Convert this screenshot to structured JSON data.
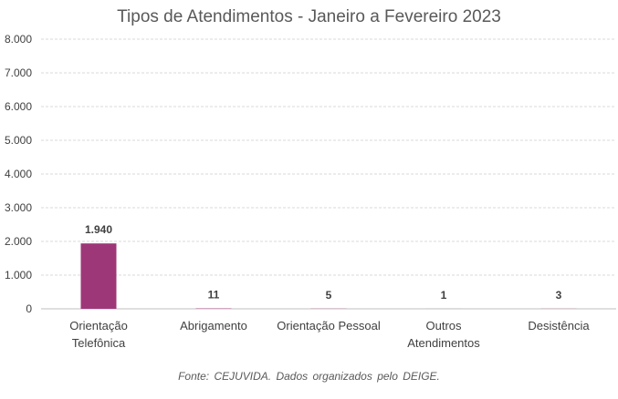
{
  "chart_data": {
    "type": "bar",
    "title": "Tipos de Atendimentos - Janeiro a Fevereiro 2023",
    "categories": [
      [
        "Orientação",
        "Telefônica"
      ],
      [
        "Abrigamento"
      ],
      [
        "Orientação Pessoal"
      ],
      [
        "Outros",
        "Atendimentos"
      ],
      [
        "Desistência"
      ]
    ],
    "values": [
      1940,
      11,
      5,
      1,
      3
    ],
    "value_labels": [
      "1.940",
      "11",
      "5",
      "1",
      "3"
    ],
    "ylim": [
      0,
      8000
    ],
    "yticks": [
      0,
      1000,
      2000,
      3000,
      4000,
      5000,
      6000,
      7000,
      8000
    ],
    "ytick_labels": [
      "0",
      "1.000",
      "2.000",
      "3.000",
      "4.000",
      "5.000",
      "6.000",
      "7.000",
      "8.000"
    ],
    "xlabel": "",
    "ylabel": "",
    "grid": true,
    "bar_color": "#9E3778",
    "grid_color": "#D9D9D9"
  },
  "source_note": "Fonte: CEJUVIDA. Dados organizados pelo DEIGE."
}
